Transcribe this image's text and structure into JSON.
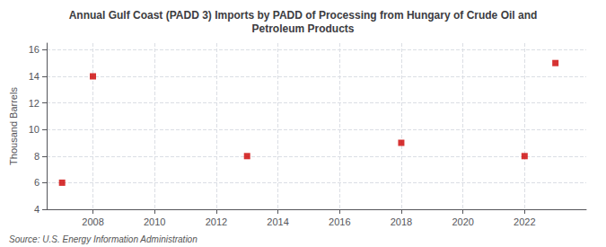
{
  "chart_data": {
    "type": "scatter",
    "title": "Annual Gulf Coast (PADD 3) Imports by PADD of Processing from Hungary of Crude Oil and\nPetroleum Products",
    "ylabel": "Thousand Barrels",
    "annotations": [
      "Source: U.S. Energy Information Administration"
    ],
    "x": [
      2007,
      2008,
      2013,
      2018,
      2022,
      2023
    ],
    "values": [
      6,
      14,
      8,
      9,
      8,
      15
    ],
    "color": "#cc0000",
    "marker": "square",
    "xlim": [
      2006.5,
      2024
    ],
    "xticks": [
      2008,
      2010,
      2012,
      2014,
      2016,
      2018,
      2020,
      2022
    ],
    "ylim": [
      4,
      16.5
    ],
    "yticks": [
      4,
      6,
      8,
      10,
      12,
      14,
      16
    ],
    "grid": true
  }
}
